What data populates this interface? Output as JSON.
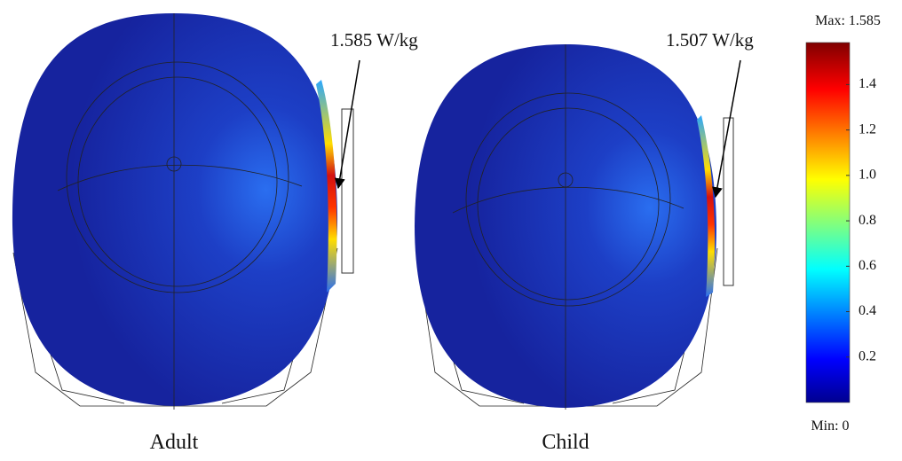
{
  "panels": [
    {
      "label": "Adult",
      "annotation": "1.585 W/kg"
    },
    {
      "label": "Child",
      "annotation": "1.507 W/kg"
    }
  ],
  "colorbar": {
    "max_label": "Max: 1.585",
    "min_label": "Min: 0",
    "lim": [
      0,
      1.585
    ],
    "ticks": [
      0.2,
      0.4,
      0.6,
      0.8,
      {
        "value": 1,
        "label": "1.0"
      },
      1.2,
      1.4
    ]
  }
}
